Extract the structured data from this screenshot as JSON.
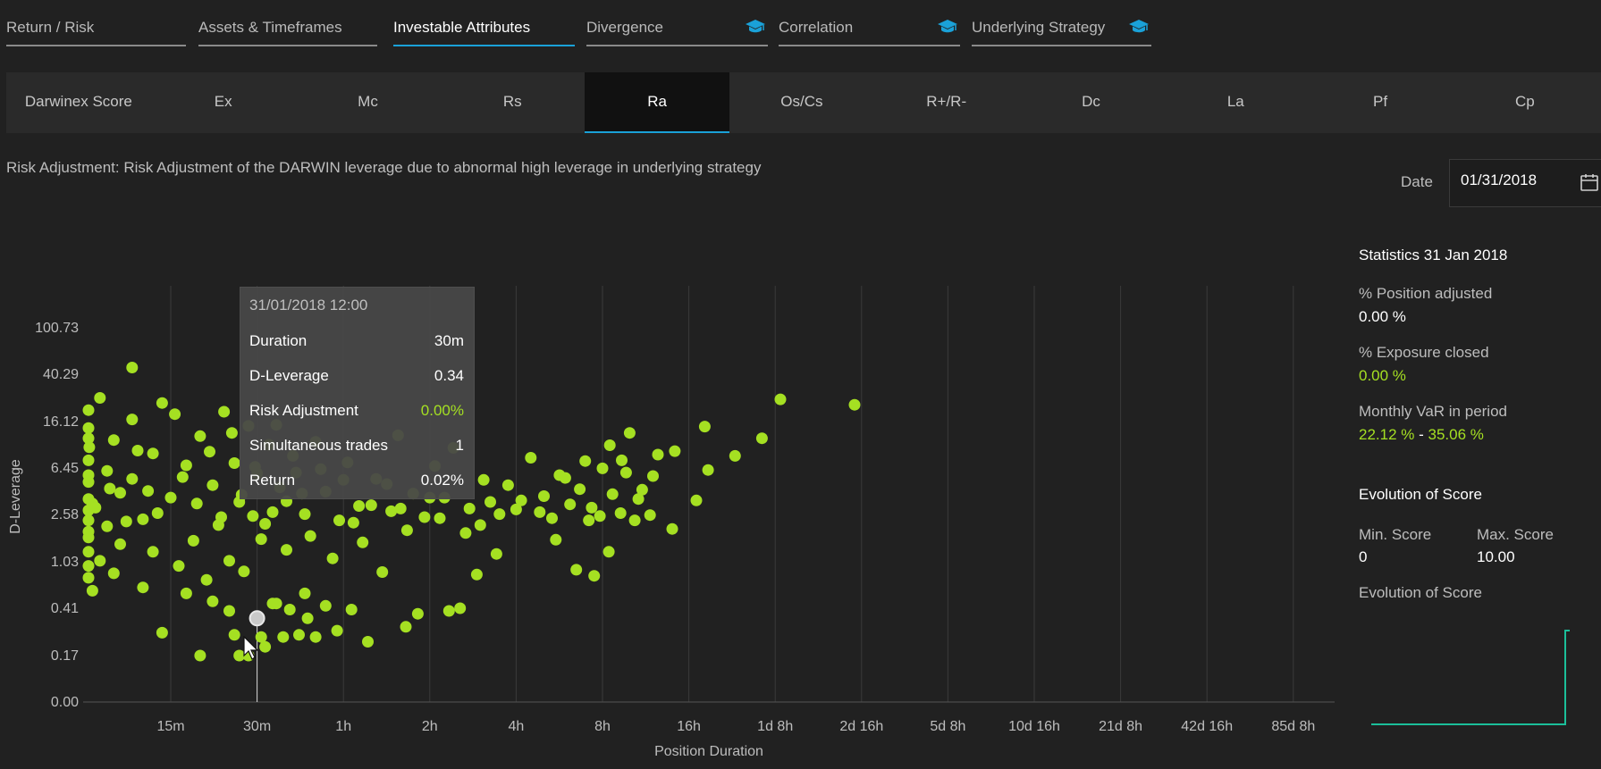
{
  "tabs": [
    {
      "label": "Return / Risk",
      "cap": false,
      "active": false
    },
    {
      "label": "Assets & Timeframes",
      "cap": false,
      "active": false
    },
    {
      "label": "Investable Attributes",
      "cap": false,
      "active": true
    },
    {
      "label": "Divergence",
      "cap": true,
      "active": false
    },
    {
      "label": "Correlation",
      "cap": true,
      "active": false
    },
    {
      "label": "Underlying Strategy",
      "cap": true,
      "active": false
    }
  ],
  "subtabs": [
    {
      "label": "Darwinex Score",
      "active": false
    },
    {
      "label": "Ex",
      "active": false
    },
    {
      "label": "Mc",
      "active": false
    },
    {
      "label": "Rs",
      "active": false
    },
    {
      "label": "Ra",
      "active": true
    },
    {
      "label": "Os/Cs",
      "active": false
    },
    {
      "label": "R+/R-",
      "active": false
    },
    {
      "label": "Dc",
      "active": false
    },
    {
      "label": "La",
      "active": false
    },
    {
      "label": "Pf",
      "active": false
    },
    {
      "label": "Cp",
      "active": false
    }
  ],
  "description": "Risk Adjustment: Risk Adjustment of the DARWIN leverage due to abnormal high leverage in underlying strategy",
  "date": {
    "label": "Date",
    "value": "01/31/2018"
  },
  "tooltip": {
    "title": "31/01/2018 12:00",
    "rows": [
      {
        "label": "Duration",
        "value": "30m"
      },
      {
        "label": "D-Leverage",
        "value": "0.34"
      },
      {
        "label": "Risk Adjustment",
        "value": "0.00%"
      },
      {
        "label": "Simultaneous trades",
        "value": "1"
      },
      {
        "label": "Return",
        "value": "0.02%"
      }
    ]
  },
  "stats": {
    "title": "Statistics 31 Jan 2018",
    "position_adjusted_label": "% Position adjusted",
    "position_adjusted_value": "0.00 %",
    "exposure_closed_label": "% Exposure closed",
    "exposure_closed_value": "0.00 %",
    "var_label": "Monthly VaR in period",
    "var_low": "22.12 %",
    "var_sep": " - ",
    "var_high": "35.06 %"
  },
  "evolution": {
    "title": "Evolution of Score",
    "min_label": "Min. Score",
    "min_value": "0",
    "max_label": "Max. Score",
    "max_value": "10.00",
    "subtitle": "Evolution of Score"
  },
  "colors": {
    "accent": "#1aa1d8",
    "point": "#a5e022",
    "line": "#1bbf9a"
  },
  "chart_data": {
    "type": "scatter",
    "xlabel": "Position Duration",
    "ylabel": "D-Leverage",
    "x_ticks": [
      "15m",
      "30m",
      "1h",
      "2h",
      "4h",
      "8h",
      "16h",
      "1d 8h",
      "2d 16h",
      "5d 8h",
      "10d 16h",
      "21d 8h",
      "42d 16h",
      "85d 8h"
    ],
    "y_ticks": [
      "0.00",
      "0.17",
      "0.41",
      "1.03",
      "2.58",
      "6.45",
      "16.12",
      "40.29",
      "100.73"
    ],
    "x_scale": "log2 (minutes)",
    "y_scale": "log",
    "grid": "vertical",
    "series": [
      {
        "color": "#a5e022",
        "points": [
          [
            11,
            46
          ],
          [
            19,
            0.17
          ],
          [
            28,
            0.17
          ],
          [
            25,
            0.25
          ],
          [
            31,
            0.24
          ],
          [
            37,
            0.24
          ],
          [
            42,
            0.25
          ],
          [
            32,
            0.2
          ],
          [
            26,
            0.17
          ],
          [
            14,
            0.26
          ],
          [
            21,
            0.47
          ],
          [
            24,
            0.39
          ],
          [
            17,
            0.55
          ],
          [
            35,
            0.45
          ],
          [
            39,
            0.4
          ],
          [
            44,
            0.55
          ],
          [
            57,
            0.27
          ],
          [
            48,
            0.24
          ],
          [
            30,
            0.33
          ],
          [
            34,
            0.45
          ],
          [
            45,
            0.34
          ],
          [
            52,
            0.43
          ],
          [
            64,
            0.4
          ],
          [
            73,
            0.22
          ],
          [
            82,
            0.84
          ],
          [
            99,
            0.29
          ],
          [
            109,
            0.37
          ],
          [
            140,
            0.39
          ],
          [
            153,
            0.41
          ],
          [
            175,
            0.8
          ],
          [
            205,
            1.2
          ],
          [
            330,
            1.58
          ],
          [
            389,
            0.88
          ],
          [
            449,
            0.78
          ],
          [
            505,
            1.25
          ],
          [
            555,
            2.65
          ],
          [
            622,
            2.3
          ],
          [
            703,
            2.55
          ],
          [
            840,
            1.95
          ],
          [
            1020,
            3.4
          ],
          [
            356,
            5.3
          ],
          [
            418,
            7.4
          ],
          [
            509,
            10.1
          ],
          [
            597,
            12.9
          ],
          [
            749,
            8.4
          ],
          [
            858,
            9.0
          ],
          [
            1091,
            14.6
          ],
          [
            1391,
            8.2
          ],
          [
            1726,
            11.6
          ],
          [
            2002,
            24.8
          ],
          [
            3630,
            22.3
          ],
          [
            1120,
            6.2
          ],
          [
            720,
            5.5
          ],
          [
            640,
            3.5
          ],
          [
            470,
            2.5
          ],
          [
            560,
            7.5
          ],
          [
            430,
            2.3
          ],
          [
            290,
            2.7
          ],
          [
            250,
            3.4
          ],
          [
            210,
            2.6
          ],
          [
            180,
            2.1
          ],
          [
            160,
            1.8
          ],
          [
            130,
            2.4
          ],
          [
            120,
            3.6
          ],
          [
            100,
            1.9
          ],
          [
            95,
            2.9
          ],
          [
            85,
            4.7
          ],
          [
            75,
            3.1
          ],
          [
            70,
            1.5
          ],
          [
            65,
            2.2
          ],
          [
            60,
            5.1
          ],
          [
            55,
            1.1
          ],
          [
            50,
            6.3
          ],
          [
            46,
            1.7
          ],
          [
            43,
            3.9
          ],
          [
            40,
            8.2
          ],
          [
            38,
            1.3
          ],
          [
            36,
            4.4
          ],
          [
            34,
            2.7
          ],
          [
            33,
            10.2
          ],
          [
            31,
            1.6
          ],
          [
            30,
            5.8
          ],
          [
            29,
            2.5
          ],
          [
            28,
            14.8
          ],
          [
            27,
            0.85
          ],
          [
            26,
            3.3
          ],
          [
            25,
            7.1
          ],
          [
            24,
            1.05
          ],
          [
            23,
            19.5
          ],
          [
            22,
            2.1
          ],
          [
            21,
            4.6
          ],
          [
            20,
            0.72
          ],
          [
            19,
            12.1
          ],
          [
            18,
            1.55
          ],
          [
            17,
            6.8
          ],
          [
            16,
            0.95
          ],
          [
            15,
            3.6
          ],
          [
            14,
            23.1
          ],
          [
            13,
            1.25
          ],
          [
            13,
            8.6
          ],
          [
            12,
            2.35
          ],
          [
            12,
            0.62
          ],
          [
            11,
            5.2
          ],
          [
            11,
            16.8
          ],
          [
            10,
            1.45
          ],
          [
            10,
            3.95
          ],
          [
            9.5,
            0.82
          ],
          [
            9.5,
            11.2
          ],
          [
            9,
            2.05
          ],
          [
            9,
            6.1
          ],
          [
            8.5,
            1.05
          ],
          [
            8.5,
            25.5
          ],
          [
            8,
            3.2
          ],
          [
            8,
            0.58
          ],
          [
            7.8,
            9.7
          ],
          [
            7.6,
            1.85
          ],
          [
            7.5,
            4.9
          ],
          [
            7.4,
            14.2
          ],
          [
            7.3,
            0.75
          ],
          [
            7.2,
            2.8
          ],
          [
            7.1,
            1.25
          ],
          [
            7,
            7.5
          ],
          [
            7,
            3.5
          ],
          [
            7,
            20.1
          ],
          [
            7,
            0.95
          ],
          [
            7,
            5.6
          ],
          [
            7,
            1.65
          ],
          [
            7,
            2.3
          ],
          [
            7,
            11.6
          ],
          [
            8.2,
            2.95
          ],
          [
            9.2,
            4.3
          ],
          [
            10.5,
            2.25
          ],
          [
            11.5,
            9.1
          ],
          [
            12.5,
            4.1
          ],
          [
            13.5,
            2.65
          ],
          [
            15.5,
            18.6
          ],
          [
            16.5,
            5.4
          ],
          [
            18.5,
            3.2
          ],
          [
            20.5,
            8.9
          ],
          [
            22.5,
            2.45
          ],
          [
            24.5,
            12.9
          ],
          [
            26.5,
            3.8
          ],
          [
            29.5,
            6.6
          ],
          [
            32,
            2.15
          ],
          [
            35,
            15.1
          ],
          [
            38,
            3.35
          ],
          [
            41,
            5.9
          ],
          [
            44,
            2.6
          ],
          [
            48,
            10.8
          ],
          [
            52,
            4.05
          ],
          [
            58,
            2.3
          ],
          [
            62,
            7.2
          ],
          [
            68,
            3.05
          ],
          [
            78,
            5.2
          ],
          [
            88,
            2.75
          ],
          [
            93,
            12.3
          ],
          [
            105,
            3.9
          ],
          [
            115,
            2.45
          ],
          [
            125,
            6.7
          ],
          [
            135,
            3.6
          ],
          [
            145,
            9.6
          ],
          [
            165,
            2.9
          ],
          [
            185,
            5.1
          ],
          [
            195,
            3.3
          ],
          [
            225,
            4.6
          ],
          [
            240,
            2.85
          ],
          [
            270,
            7.9
          ],
          [
            300,
            3.7
          ],
          [
            320,
            2.4
          ],
          [
            340,
            5.6
          ],
          [
            370,
            3.15
          ],
          [
            400,
            4.25
          ],
          [
            440,
            2.95
          ],
          [
            480,
            6.4
          ],
          [
            520,
            3.85
          ],
          [
            580,
            5.9
          ],
          [
            660,
            4.2
          ]
        ]
      }
    ]
  }
}
